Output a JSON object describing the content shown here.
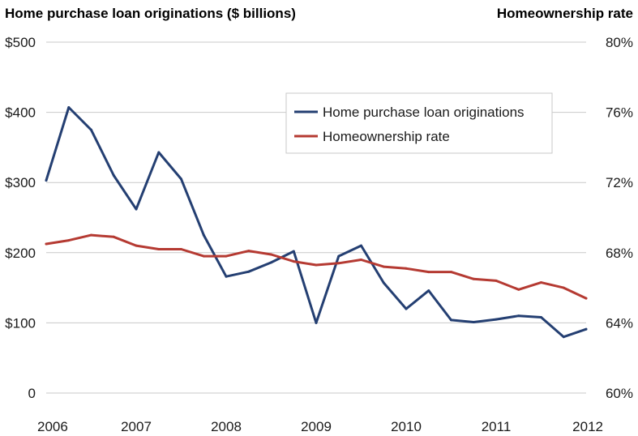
{
  "chart_data": {
    "type": "line",
    "title_left": "Home purchase loan originations ($ billions)",
    "title_right": "Homeownership rate",
    "x_ticks": [
      "2006",
      "2007",
      "2008",
      "2009",
      "2010",
      "2011",
      "2012"
    ],
    "y_left_ticks": [
      "$500",
      "$400",
      "$300",
      "$200",
      "$100",
      "0"
    ],
    "y_right_ticks": [
      "80%",
      "76%",
      "72%",
      "68%",
      "64%",
      "60%"
    ],
    "y_left_range": [
      0,
      500
    ],
    "y_right_range": [
      60,
      80
    ],
    "grid": true,
    "legend_position": "top-right",
    "series": [
      {
        "name": "Home purchase loan originations",
        "axis": "left",
        "color": "#243f72",
        "x": [
          2006.0,
          2006.25,
          2006.5,
          2006.75,
          2007.0,
          2007.25,
          2007.5,
          2007.75,
          2008.0,
          2008.25,
          2008.5,
          2008.75,
          2009.0,
          2009.25,
          2009.5,
          2009.75,
          2010.0,
          2010.25,
          2010.5,
          2010.75,
          2011.0,
          2011.25,
          2011.5,
          2011.75,
          2012.0
        ],
        "values": [
          303,
          407,
          375,
          310,
          262,
          343,
          305,
          225,
          166,
          173,
          186,
          202,
          100,
          195,
          210,
          157,
          120,
          146,
          104,
          101,
          105,
          110,
          108,
          80,
          91
        ]
      },
      {
        "name": "Homeownership rate",
        "axis": "right",
        "color": "#b53a32",
        "x": [
          2006.0,
          2006.25,
          2006.5,
          2006.75,
          2007.0,
          2007.25,
          2007.5,
          2007.75,
          2008.0,
          2008.25,
          2008.5,
          2008.75,
          2009.0,
          2009.25,
          2009.5,
          2009.75,
          2010.0,
          2010.25,
          2010.5,
          2010.75,
          2011.0,
          2011.25,
          2011.5,
          2011.75,
          2012.0
        ],
        "values": [
          68.5,
          68.7,
          69.0,
          68.9,
          68.4,
          68.2,
          68.2,
          67.8,
          67.8,
          68.1,
          67.9,
          67.5,
          67.3,
          67.4,
          67.6,
          67.2,
          67.1,
          66.9,
          66.9,
          66.5,
          66.4,
          65.9,
          66.3,
          66.0,
          65.4
        ]
      }
    ]
  }
}
